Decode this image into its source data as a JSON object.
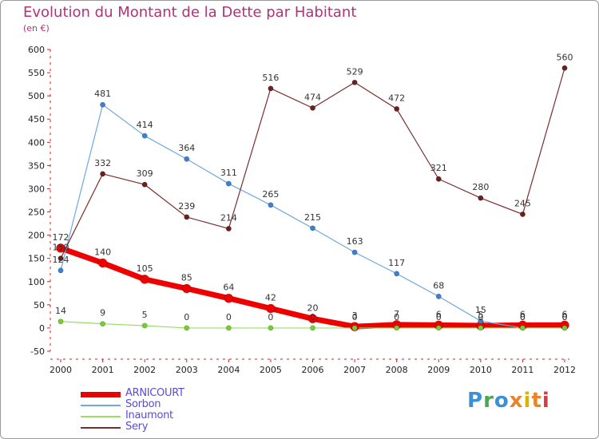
{
  "title": "Evolution du Montant de la Dette par Habitant",
  "unit": "(en €)",
  "logo": [
    "P",
    "r",
    "o",
    "x",
    "i",
    "t",
    "i"
  ],
  "logo_colors": [
    "#3d8fd6",
    "#4aa84a",
    "#3d8fd6",
    "#e8852a",
    "#d8b400",
    "#e8852a",
    "#d04040"
  ],
  "chart_data": {
    "type": "line",
    "x": [
      "2000",
      "2001",
      "2002",
      "2003",
      "2004",
      "2005",
      "2006",
      "2007",
      "2008",
      "2009",
      "2010",
      "2011",
      "2012"
    ],
    "ylim": [
      -50,
      600
    ],
    "yticks": [
      -50,
      0,
      50,
      100,
      150,
      200,
      250,
      300,
      350,
      400,
      450,
      500,
      550,
      600
    ],
    "grid": false,
    "legend_position": "bottom-left",
    "series": [
      {
        "name": "ARNICOURT",
        "color": "#ee0000",
        "width": 7,
        "marker_color": "#ee0000",
        "values": [
          172,
          140,
          105,
          85,
          64,
          42,
          20,
          3,
          7,
          6,
          5,
          6,
          6
        ]
      },
      {
        "name": "Sorbon",
        "color": "#6fa8dc",
        "width": 1.2,
        "marker_color": "#3f7fcc",
        "values": [
          124,
          481,
          414,
          364,
          311,
          265,
          215,
          163,
          117,
          68,
          15,
          0,
          0
        ]
      },
      {
        "name": "Inaumont",
        "color": "#99dd66",
        "width": 1.2,
        "marker_color": "#77cc33",
        "values": [
          14,
          9,
          5,
          0,
          0,
          0,
          0,
          0,
          0,
          0,
          0,
          0,
          0
        ]
      },
      {
        "name": "Sery",
        "color": "#7a2e2e",
        "width": 1.2,
        "marker_color": "#6b1f1f",
        "values": [
          150,
          332,
          309,
          239,
          214,
          516,
          474,
          529,
          472,
          321,
          280,
          245,
          560
        ]
      }
    ]
  }
}
